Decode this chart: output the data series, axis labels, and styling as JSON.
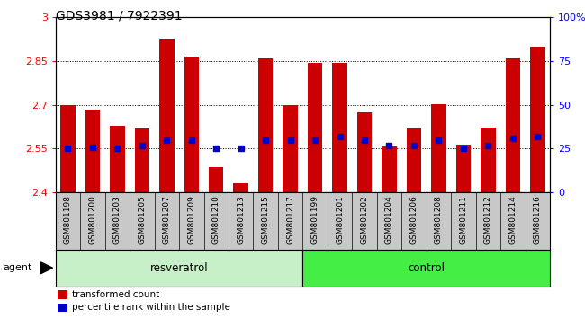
{
  "title": "GDS3981 / 7922391",
  "samples": [
    "GSM801198",
    "GSM801200",
    "GSM801203",
    "GSM801205",
    "GSM801207",
    "GSM801209",
    "GSM801210",
    "GSM801213",
    "GSM801215",
    "GSM801217",
    "GSM801199",
    "GSM801201",
    "GSM801202",
    "GSM801204",
    "GSM801206",
    "GSM801208",
    "GSM801211",
    "GSM801212",
    "GSM801214",
    "GSM801216"
  ],
  "transformed_count": [
    2.7,
    2.685,
    2.63,
    2.618,
    2.928,
    2.865,
    2.487,
    2.432,
    2.86,
    2.7,
    2.843,
    2.845,
    2.675,
    2.558,
    2.618,
    2.703,
    2.563,
    2.622,
    2.86,
    2.9
  ],
  "percentile_rank": [
    25,
    26,
    25,
    27,
    30,
    30,
    25,
    25,
    30,
    30,
    30,
    32,
    30,
    27,
    27,
    30,
    25,
    27,
    31,
    32
  ],
  "group": [
    "resveratrol",
    "resveratrol",
    "resveratrol",
    "resveratrol",
    "resveratrol",
    "resveratrol",
    "resveratrol",
    "resveratrol",
    "resveratrol",
    "resveratrol",
    "control",
    "control",
    "control",
    "control",
    "control",
    "control",
    "control",
    "control",
    "control",
    "control"
  ],
  "bar_color": "#cc0000",
  "marker_color": "#0000cc",
  "ymin": 2.4,
  "ymax": 3.0,
  "yticks": [
    2.4,
    2.55,
    2.7,
    2.85,
    3.0
  ],
  "ytick_labels": [
    "2.4",
    "2.55",
    "2.7",
    "2.85",
    "3"
  ],
  "right_yticks": [
    0,
    25,
    50,
    75,
    100
  ],
  "right_ytick_labels": [
    "0",
    "25",
    "50",
    "75",
    "100%"
  ],
  "agent_label": "agent",
  "resveratrol_label": "resveratrol",
  "control_label": "control",
  "legend_bar_label": "transformed count",
  "legend_marker_label": "percentile rank within the sample",
  "sample_cell_color": "#c8c8c8",
  "resveratrol_color": "#c8f0c8",
  "control_color": "#44ee44",
  "plot_bg": "#ffffff"
}
